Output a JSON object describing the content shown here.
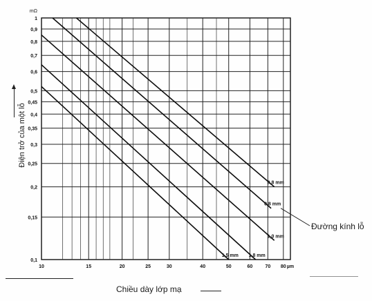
{
  "chart_data": {
    "type": "line",
    "title": "",
    "xlabel": "Chiều dày lớp mạ",
    "ylabel": "Điện trở của một lỗ",
    "x_unit": "µm",
    "y_unit": "mΩ",
    "x_scale": "log",
    "y_scale": "log",
    "xlim": [
      10,
      85
    ],
    "ylim": [
      0.1,
      1
    ],
    "x_ticks": [
      {
        "value": 10,
        "label": "10"
      },
      {
        "value": 15,
        "label": "15"
      },
      {
        "value": 20,
        "label": "20"
      },
      {
        "value": 25,
        "label": "25"
      },
      {
        "value": 30,
        "label": "30"
      },
      {
        "value": 40,
        "label": "40"
      },
      {
        "value": 50,
        "label": "50"
      },
      {
        "value": 60,
        "label": "60"
      },
      {
        "value": 70,
        "label": "70"
      },
      {
        "value": 80,
        "label": "80"
      },
      {
        "value": 85,
        "label": "µm"
      }
    ],
    "y_ticks": [
      {
        "value": 1,
        "label": "1"
      },
      {
        "value": 0.9,
        "label": "0,9"
      },
      {
        "value": 0.8,
        "label": "0,8"
      },
      {
        "value": 0.7,
        "label": "0,7"
      },
      {
        "value": 0.6,
        "label": "0,6"
      },
      {
        "value": 0.5,
        "label": "0,5"
      },
      {
        "value": 0.45,
        "label": "0,45"
      },
      {
        "value": 0.4,
        "label": "0,4"
      },
      {
        "value": 0.35,
        "label": "0,35"
      },
      {
        "value": 0.3,
        "label": "0,3"
      },
      {
        "value": 0.25,
        "label": "0,25"
      },
      {
        "value": 0.2,
        "label": "0,2"
      },
      {
        "value": 0.15,
        "label": "0,15"
      },
      {
        "value": 0.1,
        "label": "0,1"
      }
    ],
    "y_unit_label": "mΩ",
    "legend_title": "Đường kính lỗ",
    "grid": true,
    "series": [
      {
        "name": "0,8 mm",
        "points": [
          [
            13.5,
            1.0
          ],
          [
            74,
            0.2
          ]
        ]
      },
      {
        "name": "0,8 mm",
        "points": [
          [
            11,
            1.0
          ],
          [
            72,
            0.163
          ]
        ]
      },
      {
        "name": "1,0 mm",
        "points": [
          [
            10,
            0.85
          ],
          [
            74,
            0.12
          ]
        ]
      },
      {
        "name": "1,8 mm",
        "points": [
          [
            10,
            0.64
          ],
          [
            63,
            0.1
          ]
        ]
      },
      {
        "name": "1,5 mm",
        "points": [
          [
            10,
            0.52
          ],
          [
            50,
            0.1
          ]
        ]
      }
    ]
  }
}
